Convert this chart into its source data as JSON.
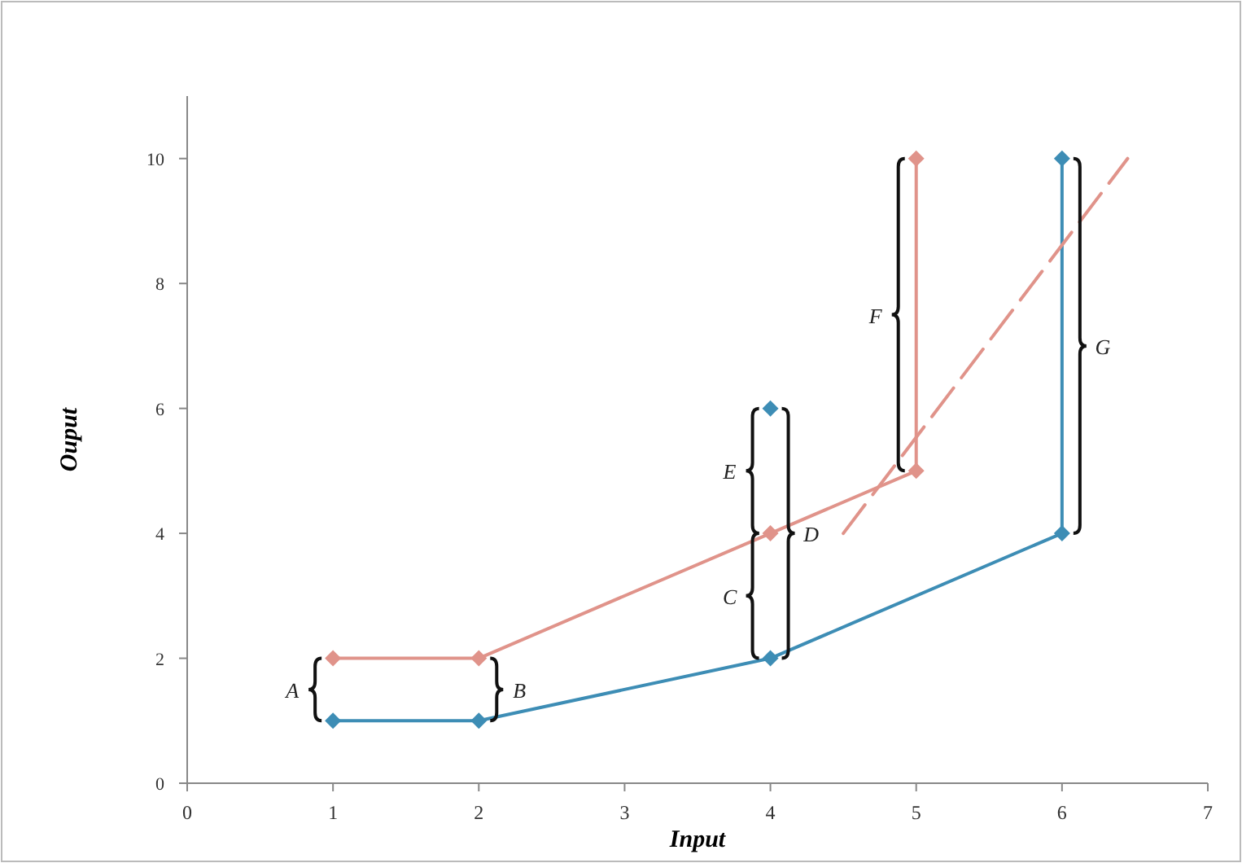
{
  "chart_data": {
    "type": "line",
    "xlabel": "Input",
    "ylabel": "Ouput",
    "xlim": [
      0,
      7
    ],
    "xticks": [
      0,
      1,
      2,
      3,
      4,
      5,
      6,
      7
    ],
    "ylim": [
      0,
      11
    ],
    "yticks": [
      0,
      2,
      4,
      6,
      8,
      10
    ],
    "grid": false,
    "marker": "diamond",
    "series": [
      {
        "color": "#3d8db5",
        "x": [
          1,
          2,
          4,
          6,
          6
        ],
        "values": [
          1,
          1,
          2,
          4,
          10
        ]
      },
      {
        "color": "#e0938a",
        "x": [
          1,
          2,
          4,
          5,
          5
        ],
        "values": [
          2,
          2,
          4,
          5,
          10
        ]
      },
      {
        "type": "scatter",
        "color": "#3d8db5",
        "x": [
          4
        ],
        "values": [
          6
        ]
      },
      {
        "color": "#e0938a",
        "x": [
          4.5,
          6.45
        ],
        "values": [
          4,
          10
        ],
        "line_style": "dashed",
        "marker": "none"
      }
    ],
    "annotations": [
      "A",
      "B",
      "C",
      "D",
      "E",
      "F",
      "G"
    ]
  }
}
